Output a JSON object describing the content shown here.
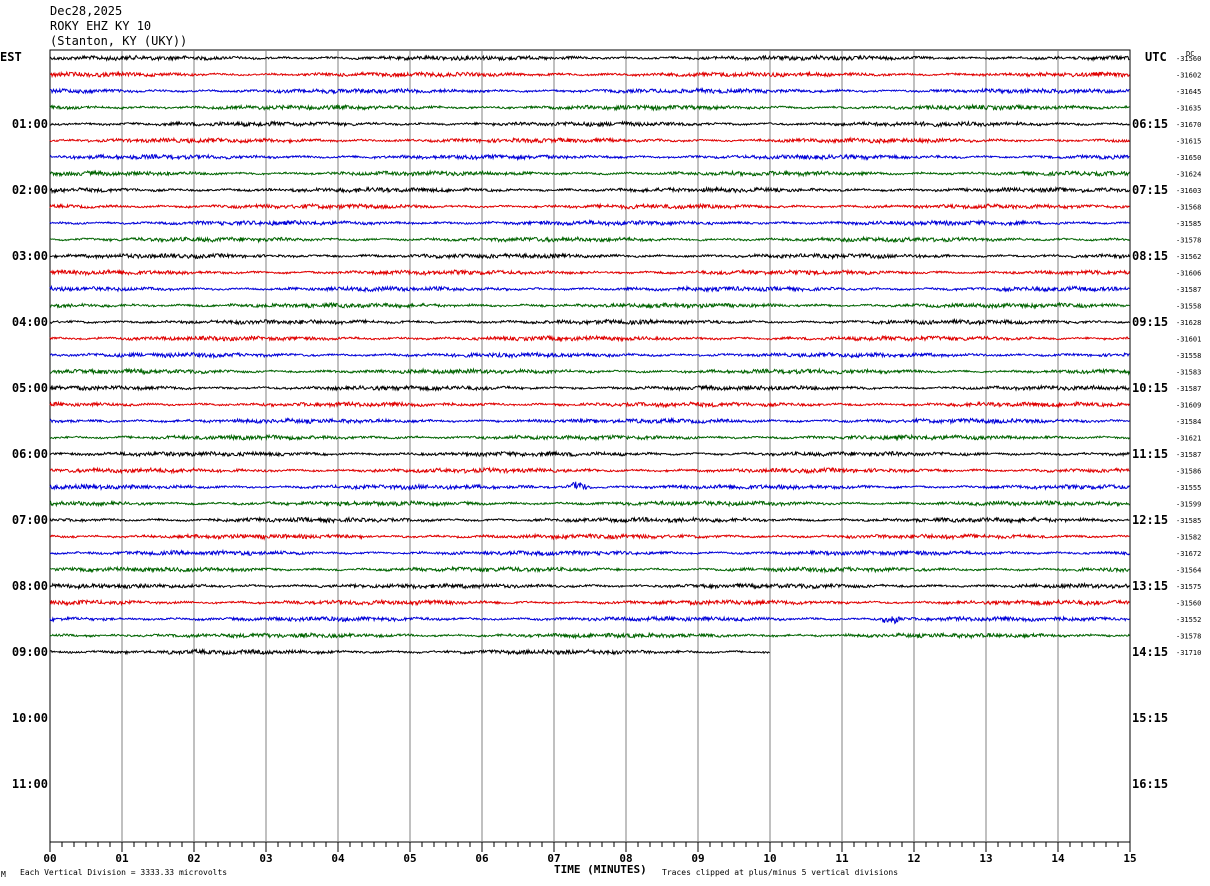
{
  "header": {
    "date": "Dec28,2025",
    "station": "ROKY EHZ KY 10",
    "location": "(Stanton, KY (UKY))"
  },
  "left_zone": "EST",
  "right_zone": "UTC",
  "dc_label": "DC",
  "footer": {
    "scale_note": "Each Vertical Division = 3333.33 microvolts",
    "clip_note": "Traces clipped at plus/minus 5 vertical divisions",
    "corner_mark": "M"
  },
  "chart_data": {
    "type": "line",
    "title": "",
    "xlabel": "TIME (MINUTES)",
    "xlim": [
      0,
      15
    ],
    "x_ticks": [
      "00",
      "01",
      "02",
      "03",
      "04",
      "05",
      "06",
      "07",
      "08",
      "09",
      "10",
      "11",
      "12",
      "13",
      "14",
      "15"
    ],
    "est_hour_labels": [
      "01:00",
      "02:00",
      "03:00",
      "04:00",
      "05:00",
      "06:00",
      "07:00",
      "08:00",
      "09:00",
      "10:00",
      "11:00"
    ],
    "utc_hour_labels": [
      "06:15",
      "07:15",
      "08:15",
      "09:15",
      "10:15",
      "11:15",
      "12:15",
      "13:15",
      "14:15",
      "15:15",
      "16:15"
    ],
    "rows_per_hour": 4,
    "total_rows": 48,
    "trace_colors": [
      "#000000",
      "#e00000",
      "#0000d8",
      "#006400"
    ],
    "last_trace_minutes": 10,
    "dc_offsets": [
      "-31560",
      "-31602",
      "-31645",
      "-31635",
      "-31670",
      "-31615",
      "-31650",
      "-31624",
      "-31603",
      "-31568",
      "-31585",
      "-31578",
      "-31562",
      "-31606",
      "-31587",
      "-31558",
      "-31628",
      "-31601",
      "-31558",
      "-31583",
      "-31587",
      "-31609",
      "-31584",
      "-31621",
      "-31587",
      "-31586",
      "-31555",
      "-31599",
      "-31585",
      "-31582",
      "-31672",
      "-31564",
      "-31575",
      "-31560",
      "-31552",
      "-31578",
      "-31710"
    ],
    "events": [
      {
        "row": 34,
        "minute": 11.7,
        "label": ""
      },
      {
        "row": 26,
        "minute": 7.35,
        "label": ""
      }
    ]
  }
}
